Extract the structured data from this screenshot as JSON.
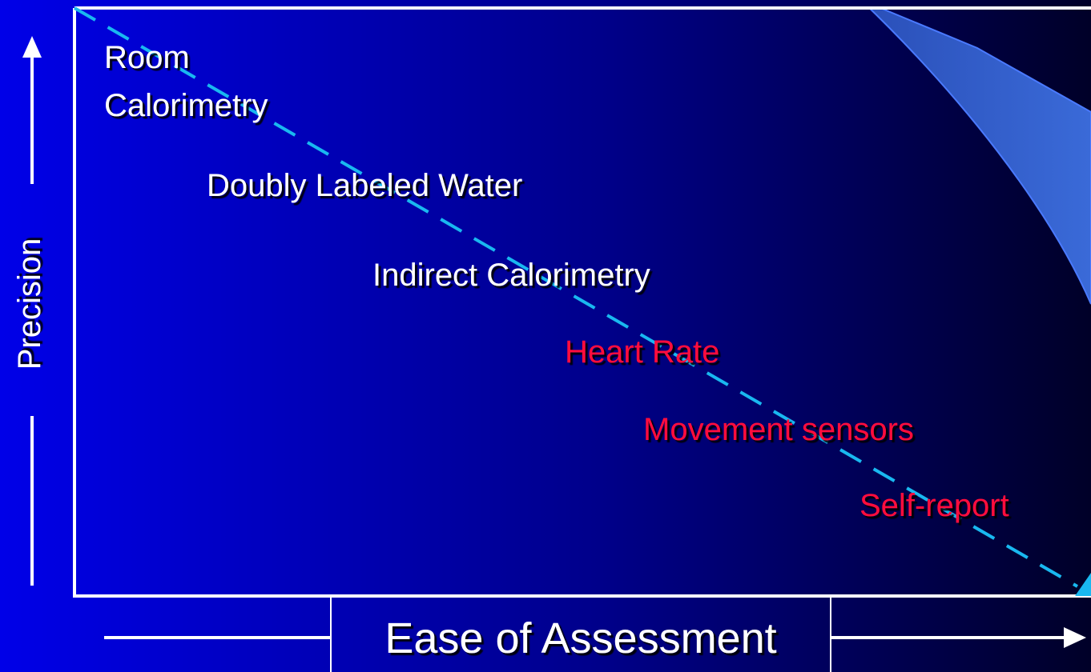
{
  "axes": {
    "y_label": "Precision",
    "x_label": "Ease of Assessment"
  },
  "items": [
    {
      "lines": [
        "Room",
        "Calorimetry"
      ]
    },
    {
      "lines": [
        "Doubly Labeled Water"
      ]
    },
    {
      "lines": [
        "Indirect Calorimetry"
      ]
    },
    {
      "lines": [
        "Heart Rate"
      ]
    },
    {
      "lines": [
        "Movement sensors"
      ]
    },
    {
      "lines": [
        "Self-report"
      ]
    }
  ]
}
